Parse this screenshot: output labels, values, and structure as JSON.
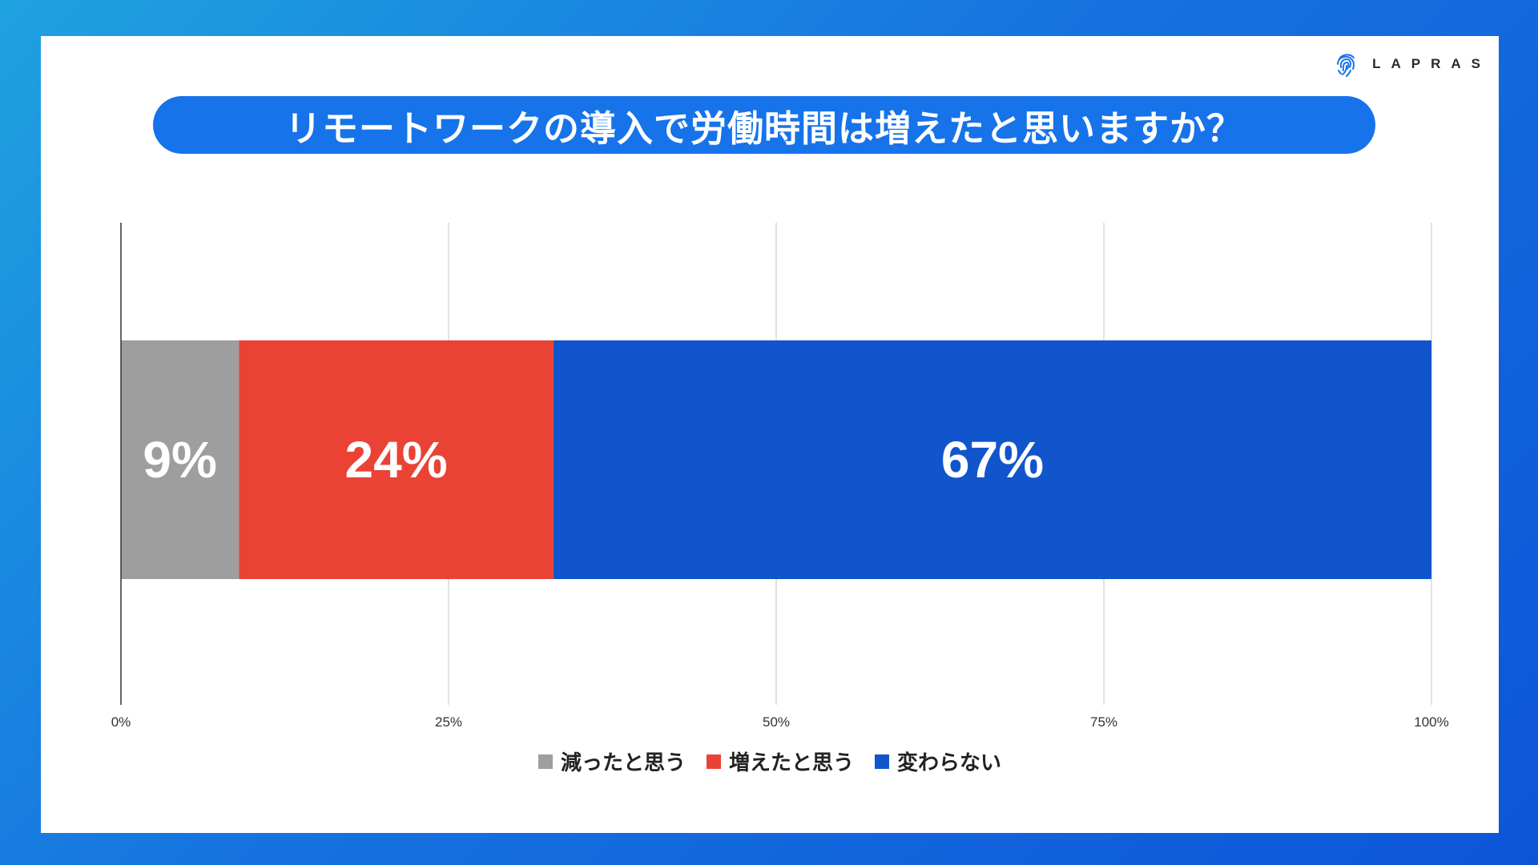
{
  "brand": {
    "name": "LAPRAS",
    "icon": "fingerprint-icon",
    "color": "#1673ea"
  },
  "title": "リモートワークの導入で労働時間は増えたと思いますか？",
  "colors": {
    "accent": "#1673ea",
    "grid": "#d9d9d9",
    "axis": "#333333"
  },
  "chart_data": {
    "type": "bar",
    "orientation": "horizontal-stacked-100",
    "title": "リモートワークの導入で労働時間は増えたと思いますか？",
    "xlabel": "",
    "ylabel": "",
    "xlim": [
      0,
      100
    ],
    "x_ticks": [
      "0%",
      "25%",
      "50%",
      "75%",
      "100%"
    ],
    "grid": true,
    "legend_position": "bottom",
    "categories": [
      ""
    ],
    "series": [
      {
        "name": "減ったと思う",
        "values": [
          9
        ],
        "label": "9%",
        "color": "#9e9e9e"
      },
      {
        "name": "増えたと思う",
        "values": [
          24
        ],
        "label": "24%",
        "color": "#ea4335"
      },
      {
        "name": "変わらない",
        "values": [
          67
        ],
        "label": "67%",
        "color": "#1155cc"
      }
    ]
  }
}
